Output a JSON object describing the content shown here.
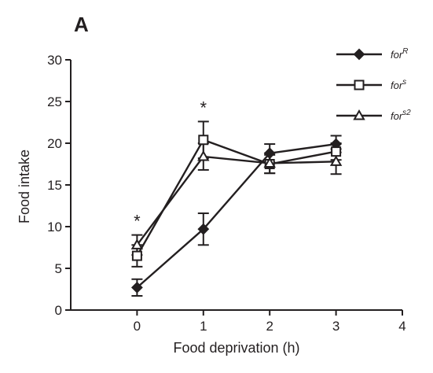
{
  "panel_label": "A",
  "chart_data": {
    "type": "line",
    "xlabel": "Food deprivation (h)",
    "ylabel": "Food intake",
    "xlim": [
      -1,
      4
    ],
    "ylim": [
      0,
      30
    ],
    "x_ticks": [
      0,
      1,
      2,
      3,
      4
    ],
    "y_ticks": [
      0,
      5,
      10,
      15,
      20,
      25,
      30
    ],
    "grid": false,
    "legend_position": "top-right",
    "annotations": [
      {
        "text": "*",
        "x": 0
      },
      {
        "text": "*",
        "x": 1
      }
    ],
    "series": [
      {
        "name": "for",
        "name_superscript": "R",
        "marker": "diamond",
        "x": [
          0,
          1,
          2,
          3
        ],
        "y": [
          2.7,
          9.7,
          18.8,
          19.9
        ],
        "error": [
          1.0,
          1.9,
          1.1,
          1.0
        ]
      },
      {
        "name": "for",
        "name_superscript": "s",
        "marker": "square",
        "x": [
          0,
          1,
          2,
          3
        ],
        "y": [
          6.5,
          20.4,
          17.5,
          19.0
        ],
        "error": [
          1.3,
          2.2,
          1.1,
          1.0
        ]
      },
      {
        "name": "for",
        "name_superscript": "s2",
        "marker": "triangle",
        "x": [
          0,
          1,
          2,
          3
        ],
        "y": [
          7.8,
          18.4,
          17.6,
          17.8
        ],
        "error": [
          1.2,
          1.6,
          1.2,
          1.5
        ]
      }
    ]
  }
}
